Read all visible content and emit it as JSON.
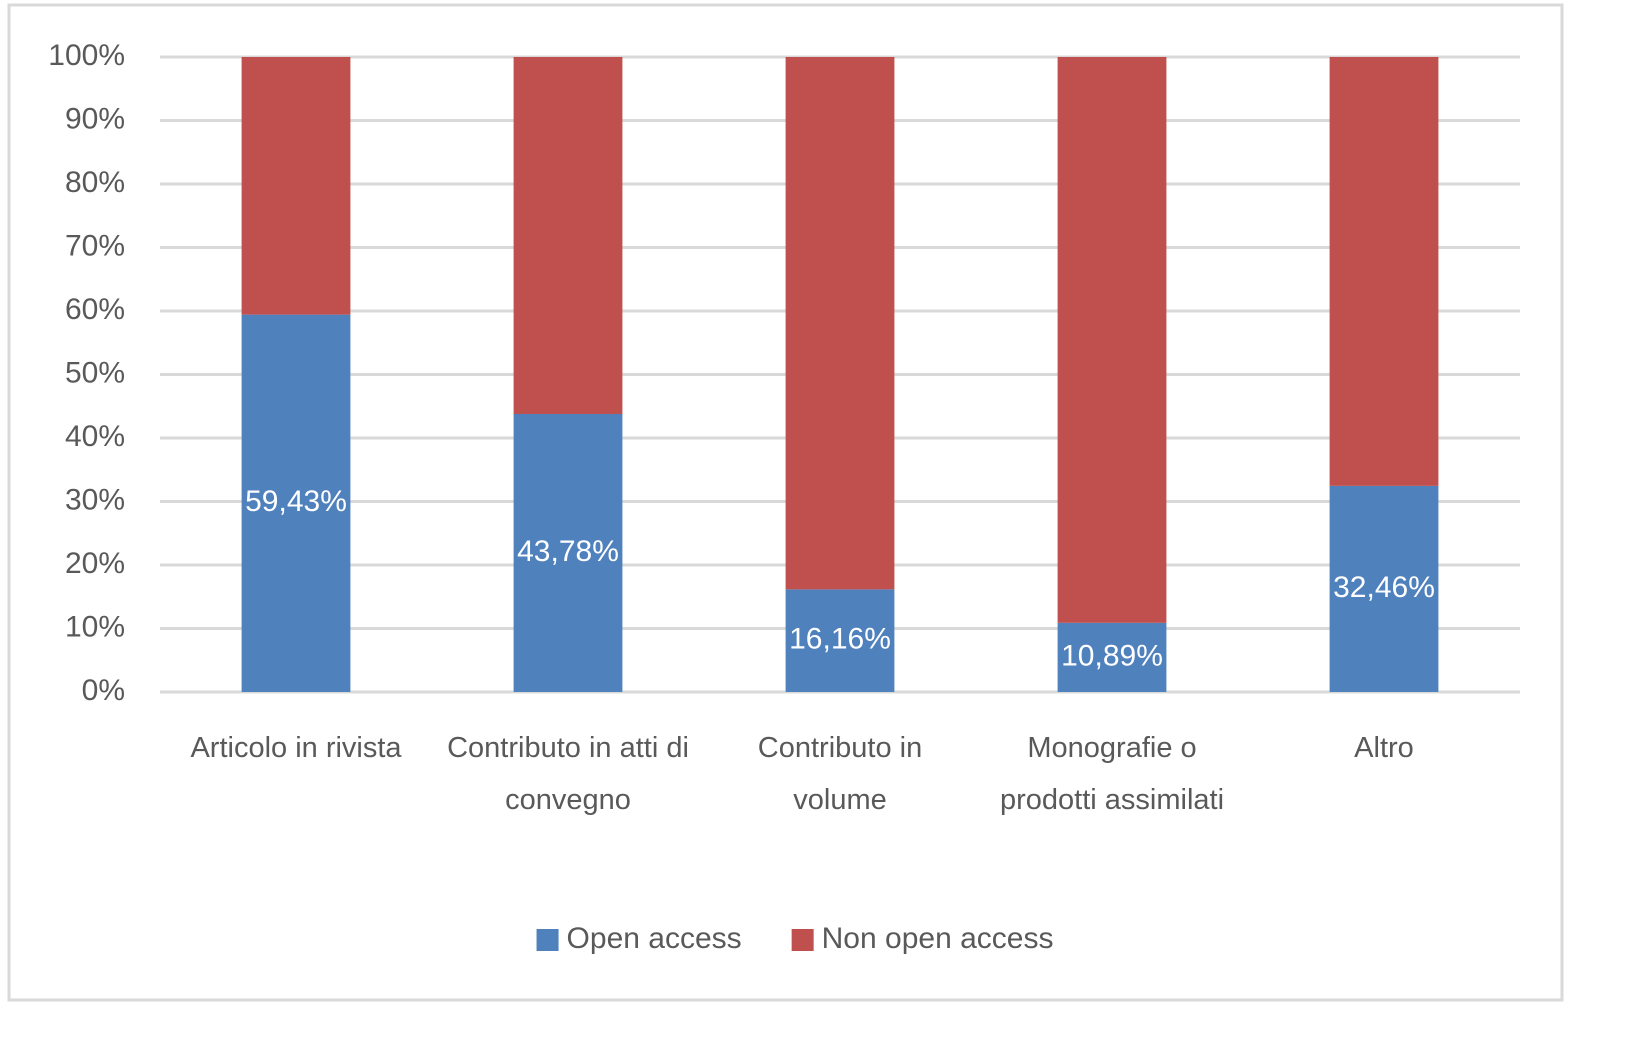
{
  "chart_data": {
    "type": "stacked_bar",
    "categories": [
      "Articolo in rivista",
      "Contributo in atti di convegno",
      "Contributo in volume",
      "Monografie o prodotti assimilati",
      "Altro"
    ],
    "series": [
      {
        "name": "Open access",
        "color": "#4f81bd",
        "values": [
          59.43,
          43.78,
          16.16,
          10.89,
          32.46
        ],
        "value_labels": [
          "59,43%",
          "43,78%",
          "16,16%",
          "10,89%",
          "32,46%"
        ]
      },
      {
        "name": "Non open access",
        "color": "#c0504d",
        "values": [
          40.57,
          56.22,
          83.84,
          89.11,
          67.54
        ]
      }
    ],
    "ylim": [
      0,
      100
    ],
    "yticks": [
      {
        "value": 0,
        "label": "0%"
      },
      {
        "value": 10,
        "label": "10%"
      },
      {
        "value": 20,
        "label": "20%"
      },
      {
        "value": 30,
        "label": "30%"
      },
      {
        "value": 40,
        "label": "40%"
      },
      {
        "value": 50,
        "label": "50%"
      },
      {
        "value": 60,
        "label": "60%"
      },
      {
        "value": 70,
        "label": "70%"
      },
      {
        "value": 80,
        "label": "80%"
      },
      {
        "value": 90,
        "label": "90%"
      },
      {
        "value": 100,
        "label": "100%"
      }
    ],
    "grid": true,
    "legend": "bottom"
  }
}
